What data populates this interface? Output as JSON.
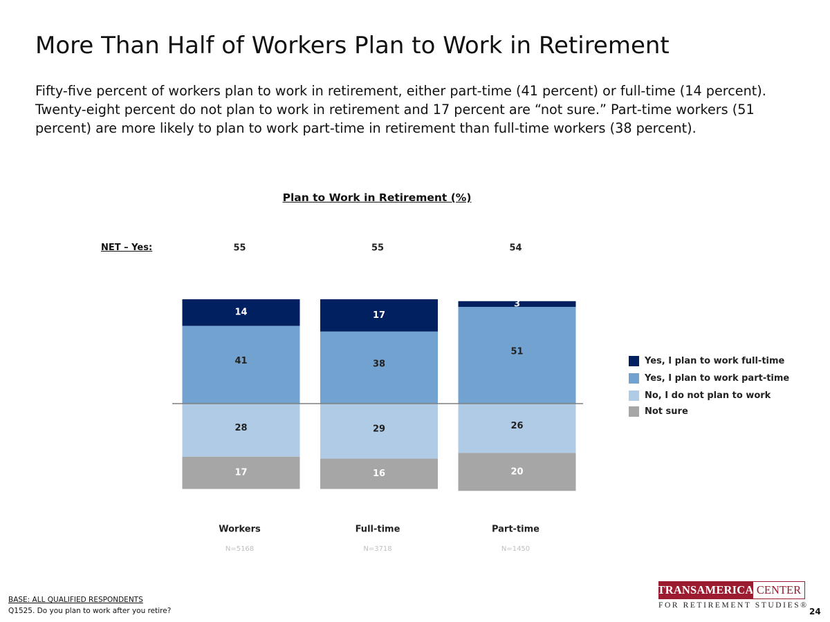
{
  "slide": {
    "title": "More Than Half of Workers Plan to Work in Retirement",
    "subtitle": "Fifty-five percent of workers plan to work in retirement, either part-time (41 percent) or full-time (14 percent). Twenty-eight percent do not plan to work in retirement and 17 percent are “not sure.” Part-time workers (51 percent) are more likely to plan to work part-time in retirement than full-time workers (38 percent).",
    "base_note": "BASE: ALL QUALIFIED RESPONDENTS",
    "question_note": "Q1525. Do you plan to work after you retire?",
    "page_number": "24",
    "logo_text_left": "TRANSAMERICA",
    "logo_text_right": "CENTER",
    "logo_text_bottom": "FOR RETIREMENT STUDIES®"
  },
  "chart_data": {
    "type": "bar",
    "stacked": "diverging",
    "title": "Plan to Work in Retirement (%)",
    "net_label": "NET – Yes:",
    "categories": [
      "Workers",
      "Full-time",
      "Part-time"
    ],
    "sample_sizes": [
      "N=5168",
      "N=3718",
      "N=1450"
    ],
    "net_values": [
      "55",
      "55",
      "54"
    ],
    "series": [
      {
        "name": "Yes, I plan to work full-time",
        "values": [
          14,
          17,
          3
        ],
        "color": "#002060"
      },
      {
        "name": "Yes, I plan to work part-time",
        "values": [
          41,
          38,
          51
        ],
        "color": "#71a2d0"
      },
      {
        "name": "No, I do not plan to work",
        "values": [
          28,
          29,
          26
        ],
        "color": "#b0cbe5"
      },
      {
        "name": "Not sure",
        "values": [
          17,
          16,
          20
        ],
        "color": "#a6a6a6"
      }
    ],
    "legend_position": "right",
    "grid": false
  }
}
